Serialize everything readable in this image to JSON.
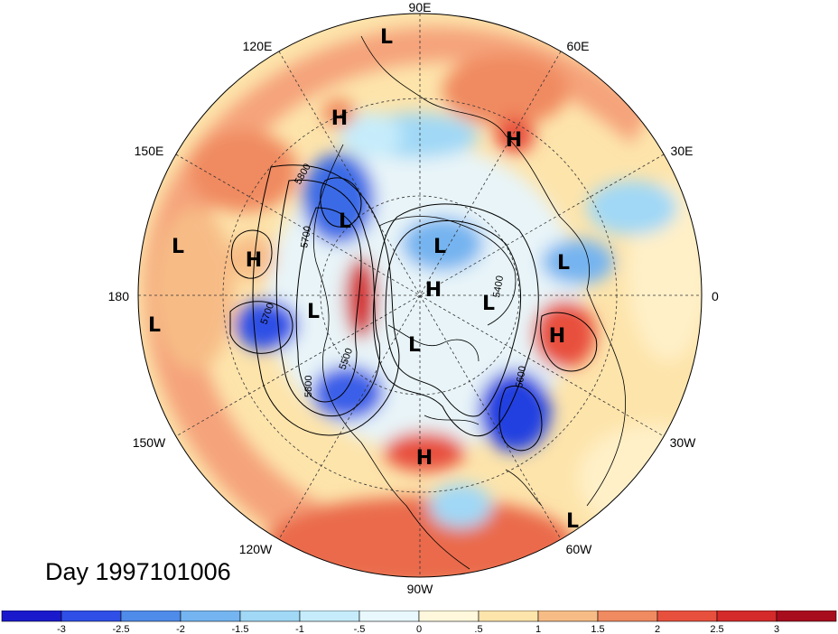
{
  "title": "Day 1997101006",
  "longitude_labels": {
    "lon_90e": "90E",
    "lon_60e": "60E",
    "lon_30e": "30E",
    "lon_0": "0",
    "lon_30w": "30W",
    "lon_60w": "60W",
    "lon_90w": "90W",
    "lon_120w": "120W",
    "lon_150w": "150W",
    "lon_180": "180",
    "lon_150e": "150E",
    "lon_120e": "120E"
  },
  "pressure_centers": [
    {
      "type": "L",
      "name": "low-center-asia-north"
    },
    {
      "type": "H",
      "name": "high-center-siberia"
    },
    {
      "type": "H",
      "name": "high-center-central-asia"
    },
    {
      "type": "L",
      "name": "low-center-kamchatka"
    },
    {
      "type": "H",
      "name": "high-center-north-pacific"
    },
    {
      "type": "L",
      "name": "low-center-west-pacific"
    },
    {
      "type": "L",
      "name": "low-center-bering"
    },
    {
      "type": "L",
      "name": "low-center-arctic-siberia"
    },
    {
      "type": "H",
      "name": "high-center-pole"
    },
    {
      "type": "L",
      "name": "low-center-scandinavia"
    },
    {
      "type": "L",
      "name": "low-center-europe"
    },
    {
      "type": "L",
      "name": "low-center-central-pacific"
    },
    {
      "type": "L",
      "name": "low-center-canada"
    },
    {
      "type": "H",
      "name": "high-center-north-atlantic"
    },
    {
      "type": "H",
      "name": "high-center-usa"
    },
    {
      "type": "L",
      "name": "low-center-south-atlantic"
    }
  ],
  "contour_labels": {
    "c5800_pacific": "5800",
    "c5700_pacific": "5700",
    "c5700_aleutian": "5700",
    "c5500": "5500",
    "c5800_lower": "5800",
    "c5600_atlantic": "5600",
    "c5400": "5400"
  },
  "colorbar": {
    "tick_labels": [
      "-3",
      "-2.5",
      "-2",
      "-1.5",
      "-1",
      "-.5",
      "0",
      ".5",
      "1",
      "1.5",
      "2",
      "2.5",
      "3"
    ],
    "colors": [
      "#1a1acc",
      "#2f4fe6",
      "#4f8be8",
      "#74b4f0",
      "#a0d8f6",
      "#c6ecfb",
      "#e8f8fd",
      "#fff8dc",
      "#fde4ab",
      "#f7bc86",
      "#f08a60",
      "#e8503e",
      "#d42a2a",
      "#a80d1e"
    ]
  }
}
